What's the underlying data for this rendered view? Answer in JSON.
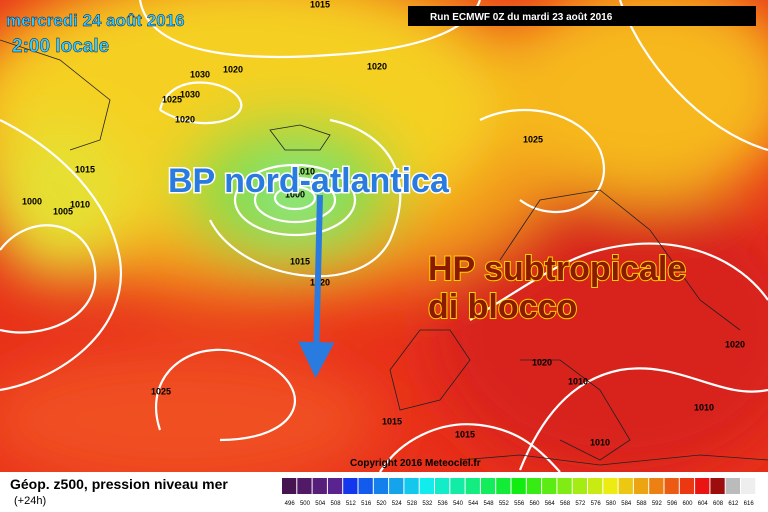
{
  "header": {
    "date": "mercredi 24 août 2016",
    "time": "2:00 locale",
    "run": "Run ECMWF 0Z du mardi 23 août 2016"
  },
  "annotations": {
    "low": "BP nord-atlantica",
    "high": [
      "HP subtropicale",
      "di blocco"
    ]
  },
  "isobar_labels": [
    "1015",
    "1030",
    "1025",
    "1030",
    "1020",
    "1020",
    "1020",
    "1015",
    "1000",
    "1005",
    "1010",
    "1010",
    "1000",
    "1015",
    "1020",
    "1025",
    "1025",
    "1020",
    "1015",
    "1015",
    "1010",
    "1010",
    "1010",
    "1020"
  ],
  "copyright": "Copyright 2016 Meteociel.fr",
  "footer": {
    "title": "Géop. z500, pression niveau mer",
    "lead": "(+24h)"
  },
  "scale": {
    "labels": [
      "496",
      "500",
      "504",
      "508",
      "512",
      "516",
      "520",
      "524",
      "528",
      "532",
      "536",
      "540",
      "544",
      "548",
      "552",
      "556",
      "560",
      "564",
      "568",
      "572",
      "576",
      "580",
      "584",
      "588",
      "592",
      "596",
      "600",
      "604",
      "608",
      "612",
      "616"
    ]
  }
}
